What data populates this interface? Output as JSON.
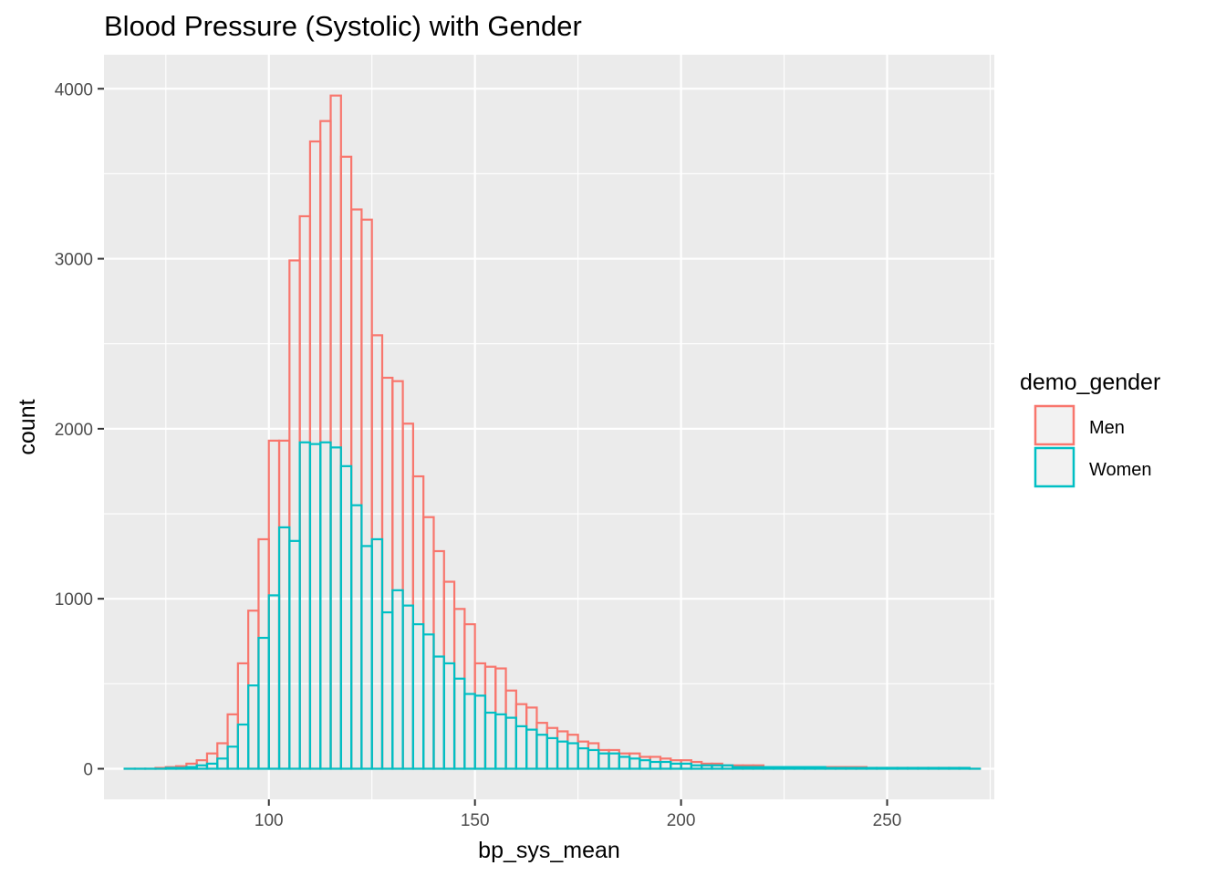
{
  "chart_data": {
    "type": "histogram",
    "title": "Blood Pressure (Systolic) with Gender",
    "xlabel": "bp_sys_mean",
    "ylabel": "count",
    "xlim": [
      60,
      276
    ],
    "ylim": [
      -180,
      4200
    ],
    "x_ticks": [
      100,
      150,
      200,
      250
    ],
    "y_ticks": [
      0,
      1000,
      2000,
      3000,
      4000
    ],
    "grid": true,
    "bin_width": 2.5,
    "bin_start": 65,
    "legend": {
      "title": "demo_gender",
      "placement": "right",
      "entries": [
        "Men",
        "Women"
      ]
    },
    "colors": {
      "Men": "#F8766D",
      "Women": "#00BFC4",
      "panel": "#EBEBEB",
      "grid": "#FFFFFF"
    },
    "series": [
      {
        "name": "Men",
        "values": [
          0,
          0,
          0,
          5,
          10,
          15,
          30,
          50,
          90,
          150,
          320,
          620,
          930,
          1350,
          1930,
          1930,
          2990,
          3250,
          3690,
          3810,
          3960,
          3600,
          3290,
          3230,
          2550,
          2300,
          2280,
          2030,
          1720,
          1480,
          1280,
          1100,
          940,
          850,
          620,
          600,
          590,
          460,
          380,
          360,
          270,
          240,
          220,
          200,
          160,
          150,
          110,
          110,
          90,
          90,
          70,
          70,
          60,
          50,
          50,
          40,
          30,
          30,
          20,
          20,
          20,
          20,
          10,
          10,
          10,
          10,
          10,
          10,
          10,
          10,
          10,
          10,
          5,
          5,
          5,
          5,
          5,
          5,
          5,
          5,
          5,
          5,
          0
        ]
      },
      {
        "name": "Women",
        "values": [
          0,
          0,
          0,
          0,
          5,
          5,
          10,
          20,
          30,
          60,
          130,
          260,
          490,
          770,
          1020,
          1420,
          1340,
          1920,
          1910,
          1920,
          1890,
          1780,
          1550,
          1310,
          1350,
          920,
          1050,
          960,
          850,
          790,
          660,
          620,
          530,
          440,
          430,
          330,
          320,
          300,
          250,
          230,
          200,
          180,
          160,
          150,
          120,
          110,
          90,
          90,
          70,
          60,
          50,
          40,
          40,
          30,
          30,
          20,
          20,
          20,
          20,
          10,
          10,
          10,
          10,
          10,
          10,
          10,
          10,
          10,
          5,
          5,
          5,
          5,
          5,
          5,
          5,
          5,
          5,
          5,
          5,
          5,
          5,
          5,
          0
        ]
      }
    ]
  }
}
